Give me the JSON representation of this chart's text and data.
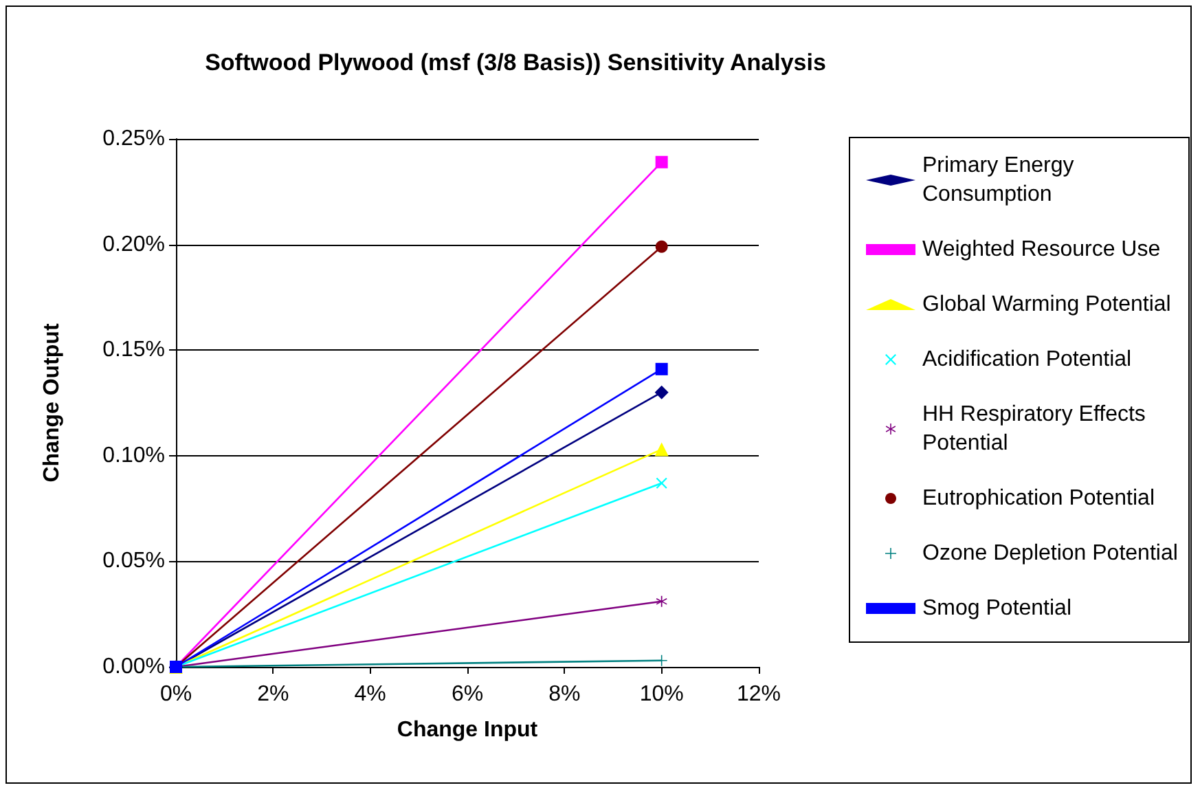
{
  "chart_data": {
    "type": "line",
    "title": "Softwood Plywood (msf (3/8 Basis)) Sensitivity Analysis",
    "xlabel": "Change Input",
    "ylabel": "Change Output",
    "x": [
      0,
      10
    ],
    "series": [
      {
        "name": "Primary Energy Consumption",
        "color": "#000080",
        "marker": "diamond",
        "values": [
          0,
          0.13
        ]
      },
      {
        "name": "Weighted Resource Use",
        "color": "#ff00ff",
        "marker": "square",
        "values": [
          0,
          0.239
        ]
      },
      {
        "name": "Global Warming Potential",
        "color": "#ffff00",
        "marker": "triangle",
        "values": [
          0,
          0.103
        ]
      },
      {
        "name": "Acidification Potential",
        "color": "#00ffff",
        "marker": "cross",
        "values": [
          0,
          0.087
        ]
      },
      {
        "name": "HH Respiratory Effects Potential",
        "color": "#800080",
        "marker": "star",
        "values": [
          0,
          0.031
        ]
      },
      {
        "name": "Eutrophication Potential",
        "color": "#800000",
        "marker": "circle",
        "values": [
          0,
          0.199
        ]
      },
      {
        "name": "Ozone Depletion Potential",
        "color": "#008080",
        "marker": "plus",
        "values": [
          0,
          0.003
        ]
      },
      {
        "name": "Smog Potential",
        "color": "#0000ff",
        "marker": "square",
        "values": [
          0,
          0.141
        ]
      }
    ],
    "xlim": [
      0,
      12
    ],
    "xticks": [
      {
        "value": 0,
        "label": "0%"
      },
      {
        "value": 2,
        "label": "2%"
      },
      {
        "value": 4,
        "label": "4%"
      },
      {
        "value": 6,
        "label": "6%"
      },
      {
        "value": 8,
        "label": "8%"
      },
      {
        "value": 10,
        "label": "10%"
      },
      {
        "value": 12,
        "label": "12%"
      }
    ],
    "ylim": [
      0,
      0.25
    ],
    "yticks": [
      {
        "value": 0,
        "label": "0.00%"
      },
      {
        "value": 0.05,
        "label": "0.05%"
      },
      {
        "value": 0.1,
        "label": "0.10%"
      },
      {
        "value": 0.15,
        "label": "0.15%"
      },
      {
        "value": 0.2,
        "label": "0.20%"
      },
      {
        "value": 0.25,
        "label": "0.25%"
      }
    ],
    "grid": "y",
    "legend": "right",
    "line_style": "solid"
  }
}
